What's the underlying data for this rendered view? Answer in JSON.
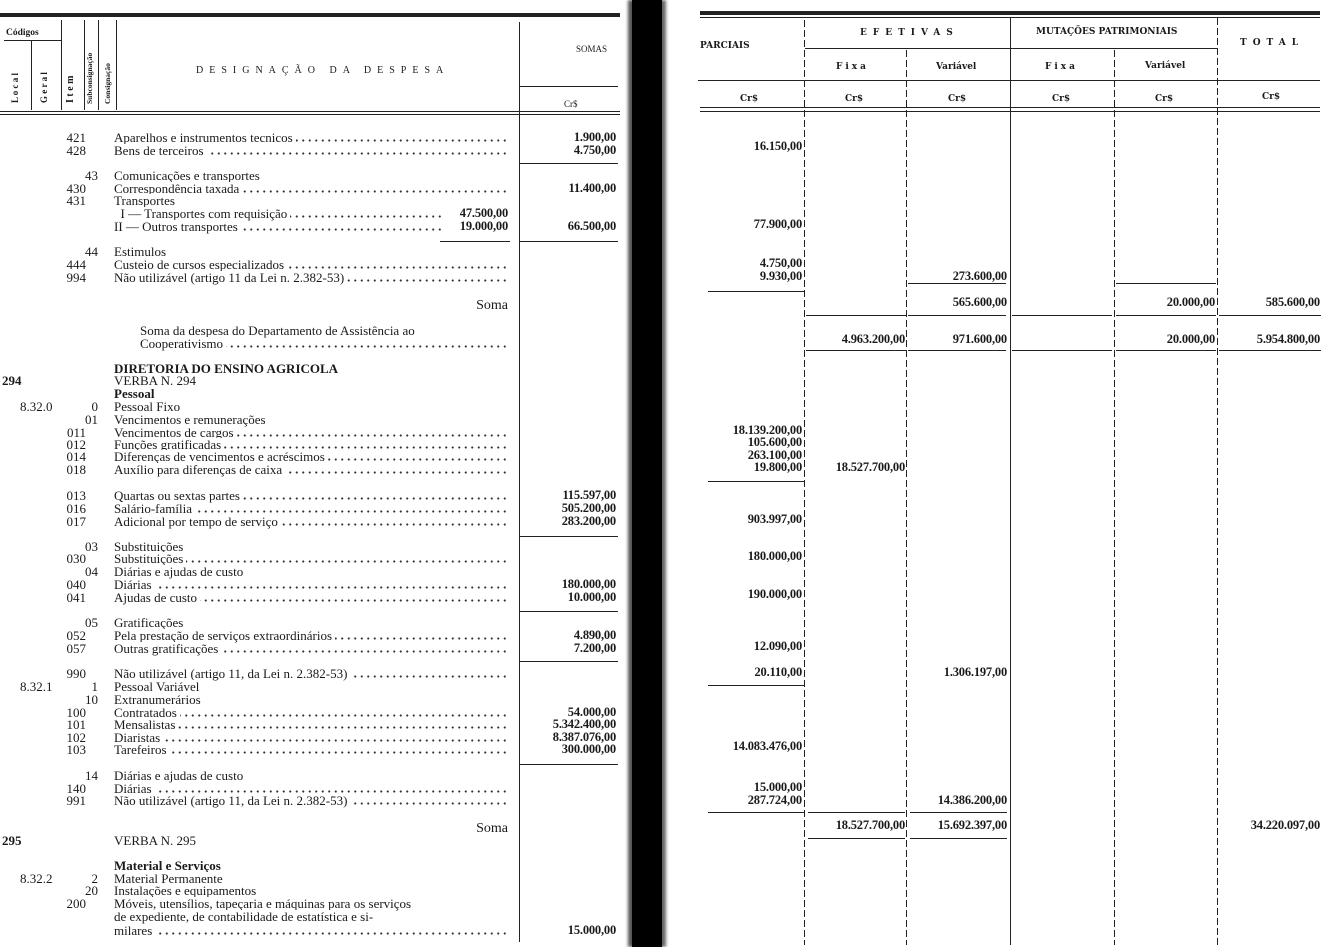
{
  "left_header": {
    "codigos": "Códigos",
    "local": "L o c a l",
    "geral": "G e r a l",
    "item": "I t e m",
    "subconsignacao": "Subconsignação",
    "consignacao": "Consignação",
    "designacao": "DESIGNAÇÃO DA DESPESA",
    "somas": "SOMAS",
    "currency": "Cr$"
  },
  "right_header": {
    "parciais": "PARCIAIS",
    "efetivas": "EFETIVAS",
    "mutacoes": "MUTAÇÕES PATRIMONIAIS",
    "total": "TOTAL",
    "fixa": "Fixa",
    "variavel": "Variável",
    "fixa2": "Fixa",
    "variavel2": "Variável",
    "cur": [
      "Cr$",
      "Cr$",
      "Cr$",
      "Cr$",
      "Cr$",
      "Cr$"
    ]
  },
  "left_rows": [
    {
      "item": "421",
      "text": "Aparelhos e instrumentos tecnicos",
      "dots": true,
      "soma": "1.900,00"
    },
    {
      "item": "428",
      "text": "Bens de terceiros",
      "dots": true,
      "soma": "4.750,00"
    },
    {
      "sub": "43",
      "text": "Comunicações e transportes"
    },
    {
      "item": "430",
      "text": "Correspondência taxada",
      "dots": true,
      "soma": "11.400,00"
    },
    {
      "item": "431",
      "text": "Transportes"
    },
    {
      "text": "  I — Transportes com requisição",
      "dots": true,
      "inner": "47.500,00"
    },
    {
      "text": "II — Outros transportes",
      "dots": true,
      "inner": "19.000,00",
      "soma": "66.500,00"
    },
    {
      "sub": "44",
      "text": "Estimulos"
    },
    {
      "item": "444",
      "text": "Custeio de cursos especializados",
      "dots": true
    },
    {
      "item": "994",
      "text": "Não utilizável (artigo 11 da Lei n. 2.382-53)",
      "dots": true
    },
    {
      "soma_label": "Soma"
    },
    {
      "text": "Soma da despesa do Departamento de Assistência ao",
      "indent": true
    },
    {
      "text": "Cooperativismo",
      "indent": true,
      "dots": true
    },
    {
      "text": "DIRETORIA DO ENSINO AGRICOLA",
      "bold": true
    },
    {
      "local": "294",
      "text": "VERBA N. 294"
    },
    {
      "text": "Pessoal",
      "bold": true
    },
    {
      "geral": "8.32.0",
      "sub": "0",
      "text": "Pessoal Fixo"
    },
    {
      "sub": "01",
      "text": "Vencimentos e remunerações"
    },
    {
      "item": "011",
      "text": "Vencimentos de cargos",
      "dots": true
    },
    {
      "item": "012",
      "text": "Funções gratificadas",
      "dots": true
    },
    {
      "item": "014",
      "text": "Diferenças de vencimentos e acréscimos",
      "dots": true
    },
    {
      "item": "018",
      "text": "Auxílio para diferenças de caixa",
      "dots": true
    },
    {
      "item": "013",
      "text": "Quartas ou sextas partes",
      "dots": true,
      "soma": "115.597,00"
    },
    {
      "item": "016",
      "text": "Salário-família",
      "dots": true,
      "soma": "505.200,00"
    },
    {
      "item": "017",
      "text": "Adicional por tempo de serviço",
      "dots": true,
      "soma": "283.200,00"
    },
    {
      "sub": "03",
      "text": "Substituições"
    },
    {
      "item": "030",
      "text": "Substituições",
      "dots": true
    },
    {
      "sub": "04",
      "text": "Diárias e ajudas de custo"
    },
    {
      "item": "040",
      "text": "Diárias",
      "dots": true,
      "soma": "180.000,00"
    },
    {
      "item": "041",
      "text": "Ajudas de custo",
      "dots": true,
      "soma": "10.000,00"
    },
    {
      "sub": "05",
      "text": "Gratificações"
    },
    {
      "item": "052",
      "text": "Pela prestação de serviços extraordinários",
      "dots": true,
      "soma": "4.890,00"
    },
    {
      "item": "057",
      "text": "Outras gratificações",
      "dots": true,
      "soma": "7.200,00"
    },
    {
      "item": "990",
      "text": "Não utilizável (artigo 11, da Lei n. 2.382-53)",
      "dots": true
    },
    {
      "geral": "8.32.1",
      "sub": "1",
      "text": "Pessoal Variável"
    },
    {
      "sub": "10",
      "text": "Extranumerários"
    },
    {
      "item": "100",
      "text": "Contratados",
      "dots": true,
      "soma": "54.000,00"
    },
    {
      "item": "101",
      "text": "Mensalistas",
      "dots": true,
      "soma": "5.342.400,00"
    },
    {
      "item": "102",
      "text": "Diaristas",
      "dots": true,
      "soma": "8.387.076,00"
    },
    {
      "item": "103",
      "text": "Tarefeiros",
      "dots": true,
      "soma": "300.000,00"
    },
    {
      "sub": "14",
      "text": "Diárias e ajudas de custo"
    },
    {
      "item": "140",
      "text": "Diárias",
      "dots": true
    },
    {
      "item": "991",
      "text": "Não utilizável (artigo 11, da Lei n. 2.382-53)",
      "dots": true
    },
    {
      "soma_label": "Soma"
    },
    {
      "local": "295",
      "text": "VERBA N. 295"
    },
    {
      "text": "Material e Serviços",
      "bold": true
    },
    {
      "geral": "8.32.2",
      "sub": "2",
      "text": "Material Permanente"
    },
    {
      "sub": "20",
      "text": "Instalações e equipamentos"
    },
    {
      "item": "200",
      "text": "Móveis, utensílios, tapeçaria e máquinas para os serviços"
    },
    {
      "text": "de expediente, de contabilidade de estatística e si-"
    },
    {
      "text": "milares",
      "dots": true,
      "soma": "15.000,00"
    }
  ],
  "right_rows": [
    {
      "parciais": "16.150,00"
    },
    {
      "parciais": "77.900,00"
    },
    {
      "parciais": "4.750,00"
    },
    {
      "parciais": "9.930,00",
      "efet_var": "273.600,00"
    },
    {
      "efet_var": "565.600,00",
      "mut_var": "20.000,00",
      "total": "585.600,00"
    },
    {
      "efet_fixa": "4.963.200,00",
      "efet_var": "971.600,00",
      "mut_var": "20.000,00",
      "total": "5.954.800,00"
    },
    {
      "parciais": "18.139.200,00"
    },
    {
      "parciais": "105.600,00"
    },
    {
      "parciais": "263.100,00"
    },
    {
      "parciais": "19.800,00",
      "efet_fixa": "18.527.700,00"
    },
    {
      "parciais": "903.997,00"
    },
    {
      "parciais": "180.000,00"
    },
    {
      "parciais": "190.000,00"
    },
    {
      "parciais": "12.090,00"
    },
    {
      "parciais": "20.110,00",
      "efet_var": "1.306.197,00"
    },
    {
      "parciais": "14.083.476,00"
    },
    {
      "parciais": "15.000,00"
    },
    {
      "parciais": "287.724,00",
      "efet_var": "14.386.200,00"
    },
    {
      "efet_fixa": "18.527.700,00",
      "efet_var": "15.692.397,00",
      "total": "34.220.097,00"
    }
  ]
}
